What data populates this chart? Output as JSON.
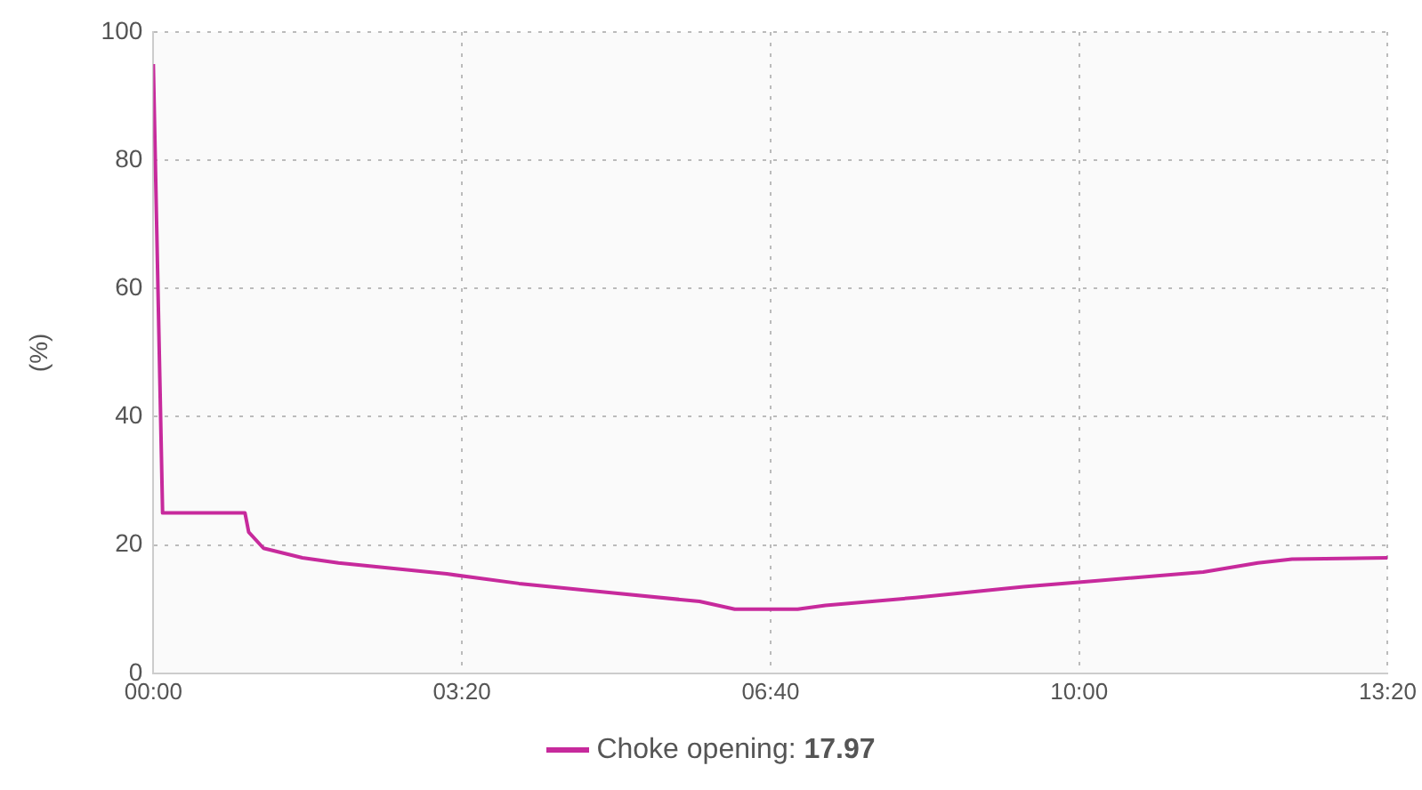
{
  "chart_data": {
    "type": "line",
    "ylabel": "(%)",
    "x": [
      0,
      0.1,
      0.99,
      1.03,
      1.19,
      1.61,
      2.0,
      3.17,
      3.95,
      4.92,
      5.9,
      6.28,
      6.96,
      7.26,
      8.23,
      9.4,
      10.17,
      11.34,
      11.93,
      12.3,
      13.333
    ],
    "series": [
      {
        "name": "Choke opening:",
        "color": "#c72a9c",
        "values": [
          95,
          25,
          25,
          22,
          19.5,
          18,
          17.2,
          15.5,
          14,
          12.6,
          11.2,
          10,
          10,
          10.6,
          11.8,
          13.5,
          14.4,
          15.8,
          17.2,
          17.8,
          18
        ]
      }
    ],
    "xlim": [
      0,
      13.333
    ],
    "xticks": [
      {
        "value": 0,
        "label": "00:00"
      },
      {
        "value": 3.333,
        "label": "03:20"
      },
      {
        "value": 6.667,
        "label": "06:40"
      },
      {
        "value": 10,
        "label": "10:00"
      },
      {
        "value": 13.333,
        "label": "13:20"
      }
    ],
    "ylim": [
      0,
      100
    ],
    "yticks": [
      0,
      20,
      40,
      60,
      80,
      100
    ],
    "grid": true,
    "legend": "bottom",
    "marker": "none",
    "line_style": "solid",
    "annotations": [
      "17.97"
    ]
  }
}
